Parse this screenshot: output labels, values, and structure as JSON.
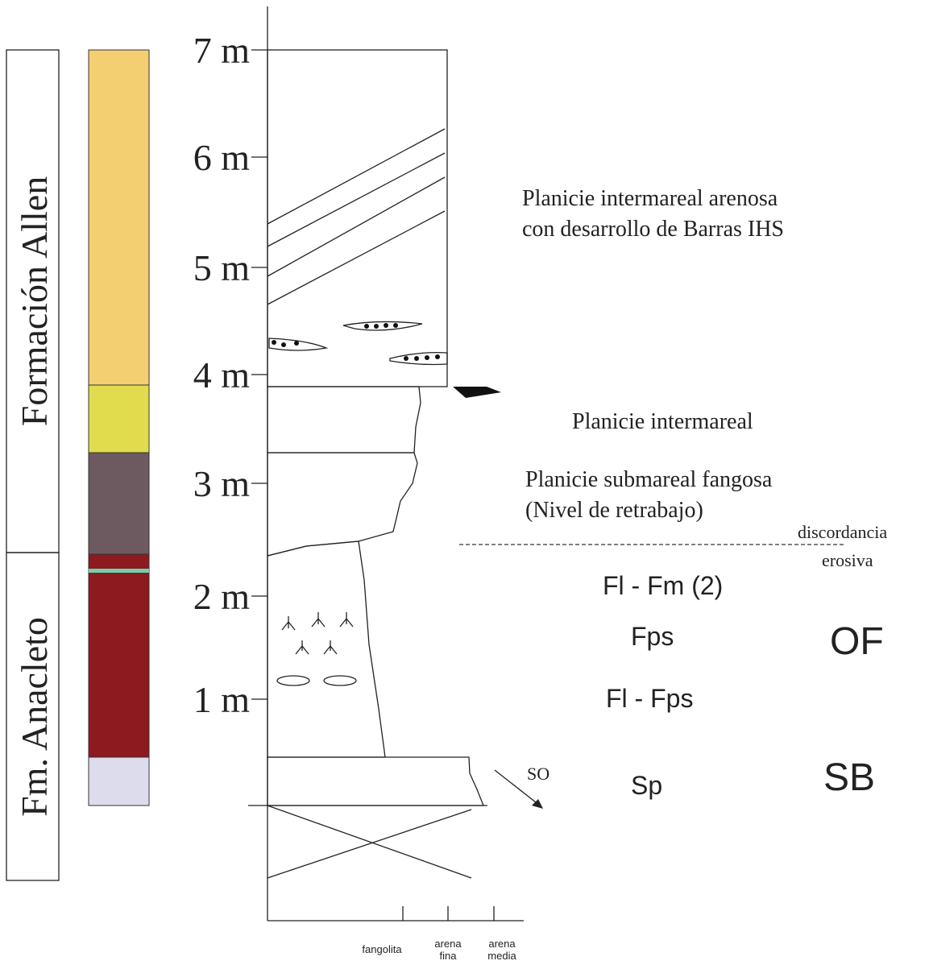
{
  "formations": [
    "Formación Allen",
    "Fm. Anacleto"
  ],
  "scale": [
    "7 m",
    "6 m",
    "5 m",
    "4 m",
    "3 m",
    "2 m",
    "1 m"
  ],
  "environments": {
    "upper": [
      "Planicie intermareal arenosa",
      "con desarrollo de Barras IHS"
    ],
    "middle": "Planicie intermareal",
    "lower": [
      "Planicie submareal fangosa",
      "(Nivel de retrabajo)"
    ],
    "surface": [
      "discordancia",
      "erosiva"
    ]
  },
  "facies": [
    "Fl - Fm (2)",
    "Fps",
    "Fl - Fps",
    "Sp"
  ],
  "elements": [
    "OF",
    "SB"
  ],
  "paleocurrent": "SO",
  "grain_size": [
    "fangolita",
    "arena",
    "fina",
    "arena",
    "media"
  ]
}
